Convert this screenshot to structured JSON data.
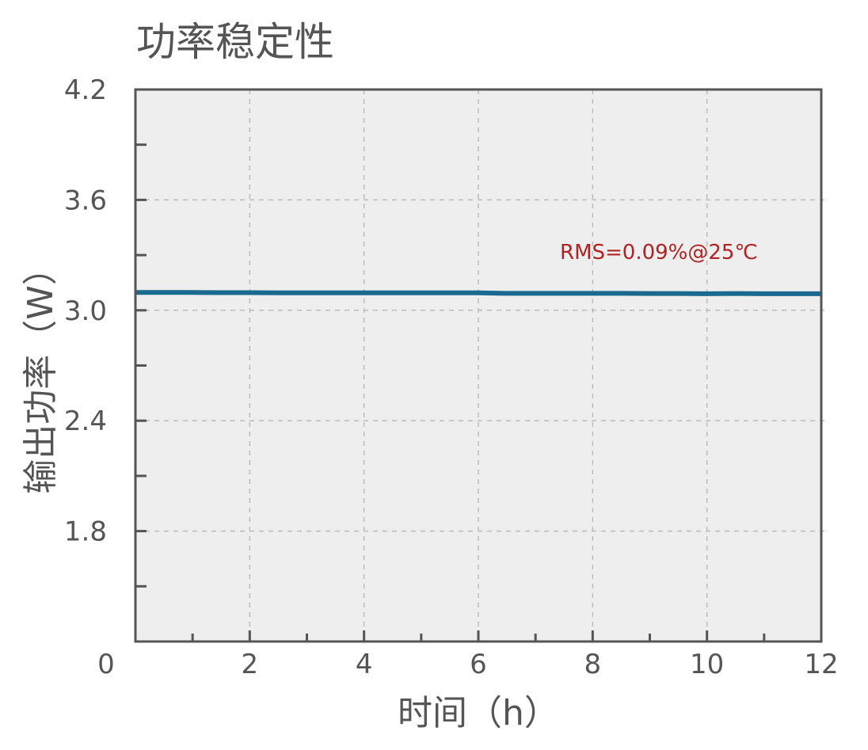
{
  "chart_data": {
    "type": "line",
    "title": "功率稳定性",
    "xlabel": "时间（h）",
    "ylabel": "输出功率（W）",
    "xlim": [
      0,
      12
    ],
    "ylim": [
      1.2,
      4.2
    ],
    "x_ticks": [
      "0",
      "2",
      "4",
      "6",
      "8",
      "10",
      "12"
    ],
    "y_ticks": [
      "1.8",
      "2.4",
      "3.0",
      "3.6",
      "4.2"
    ],
    "x_tick_values": [
      0,
      2,
      4,
      6,
      8,
      10,
      12
    ],
    "y_tick_values": [
      1.8,
      2.4,
      3.0,
      3.6,
      4.2
    ],
    "grid": true,
    "annotation": "RMS=0.09%@25℃",
    "colors": {
      "line": "#1a6a90",
      "annotation": "#b22222",
      "plot_bg": "#eeeeee",
      "axis": "#555555",
      "grid": "#bbbbbb"
    },
    "series": [
      {
        "x": [
          0,
          0.5,
          1,
          1.5,
          2,
          2.5,
          3,
          3.5,
          4,
          4.5,
          5,
          5.5,
          6,
          6.5,
          7,
          7.5,
          8,
          8.5,
          9,
          9.5,
          10,
          10.5,
          11,
          11.5,
          12
        ],
        "values": [
          3.097,
          3.097,
          3.097,
          3.096,
          3.096,
          3.095,
          3.095,
          3.095,
          3.095,
          3.095,
          3.095,
          3.095,
          3.095,
          3.092,
          3.092,
          3.092,
          3.092,
          3.092,
          3.091,
          3.091,
          3.09,
          3.091,
          3.09,
          3.09,
          3.09
        ]
      }
    ]
  }
}
